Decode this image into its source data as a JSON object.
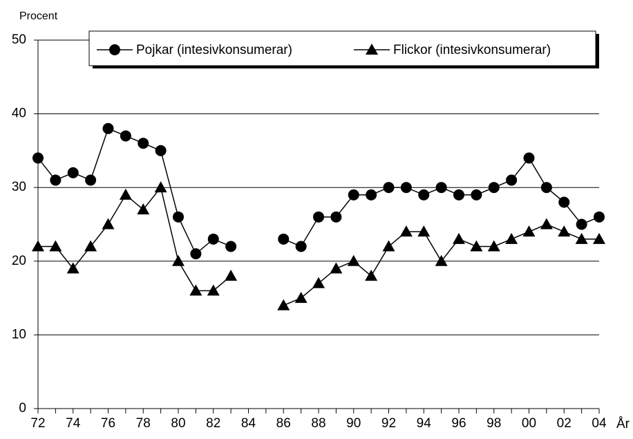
{
  "chart_data": {
    "type": "line",
    "y_label": "Procent",
    "x_label": "År",
    "categories": [
      "72",
      null,
      "74",
      null,
      "76",
      null,
      "78",
      null,
      "80",
      null,
      "82",
      null,
      "84",
      null,
      "86",
      null,
      "88",
      null,
      "90",
      null,
      "92",
      null,
      "94",
      null,
      "96",
      null,
      "98",
      null,
      "00",
      null,
      "02",
      null,
      "04"
    ],
    "series": [
      {
        "name": "Pojkar (intesivkonsumerar)",
        "color": "#000000",
        "marker": "circle",
        "values": [
          34,
          31,
          32,
          31,
          38,
          37,
          36,
          35,
          26,
          21,
          23,
          22,
          null,
          null,
          23,
          22,
          26,
          26,
          29,
          29,
          30,
          30,
          29,
          30,
          29,
          29,
          30,
          31,
          34,
          30,
          28,
          25,
          26
        ]
      },
      {
        "name": "Flickor (intesivkonsumerar)",
        "color": "#000000",
        "marker": "triangle",
        "values": [
          22,
          22,
          19,
          22,
          25,
          29,
          27,
          30,
          20,
          16,
          16,
          18,
          null,
          null,
          14,
          15,
          17,
          19,
          20,
          18,
          22,
          24,
          24,
          20,
          23,
          22,
          22,
          23,
          24,
          25,
          24,
          23,
          23
        ]
      }
    ],
    "ylim": [
      0,
      50
    ],
    "yticks": [
      0,
      10,
      20,
      30,
      40,
      50
    ],
    "grid": true,
    "legend": "top"
  }
}
